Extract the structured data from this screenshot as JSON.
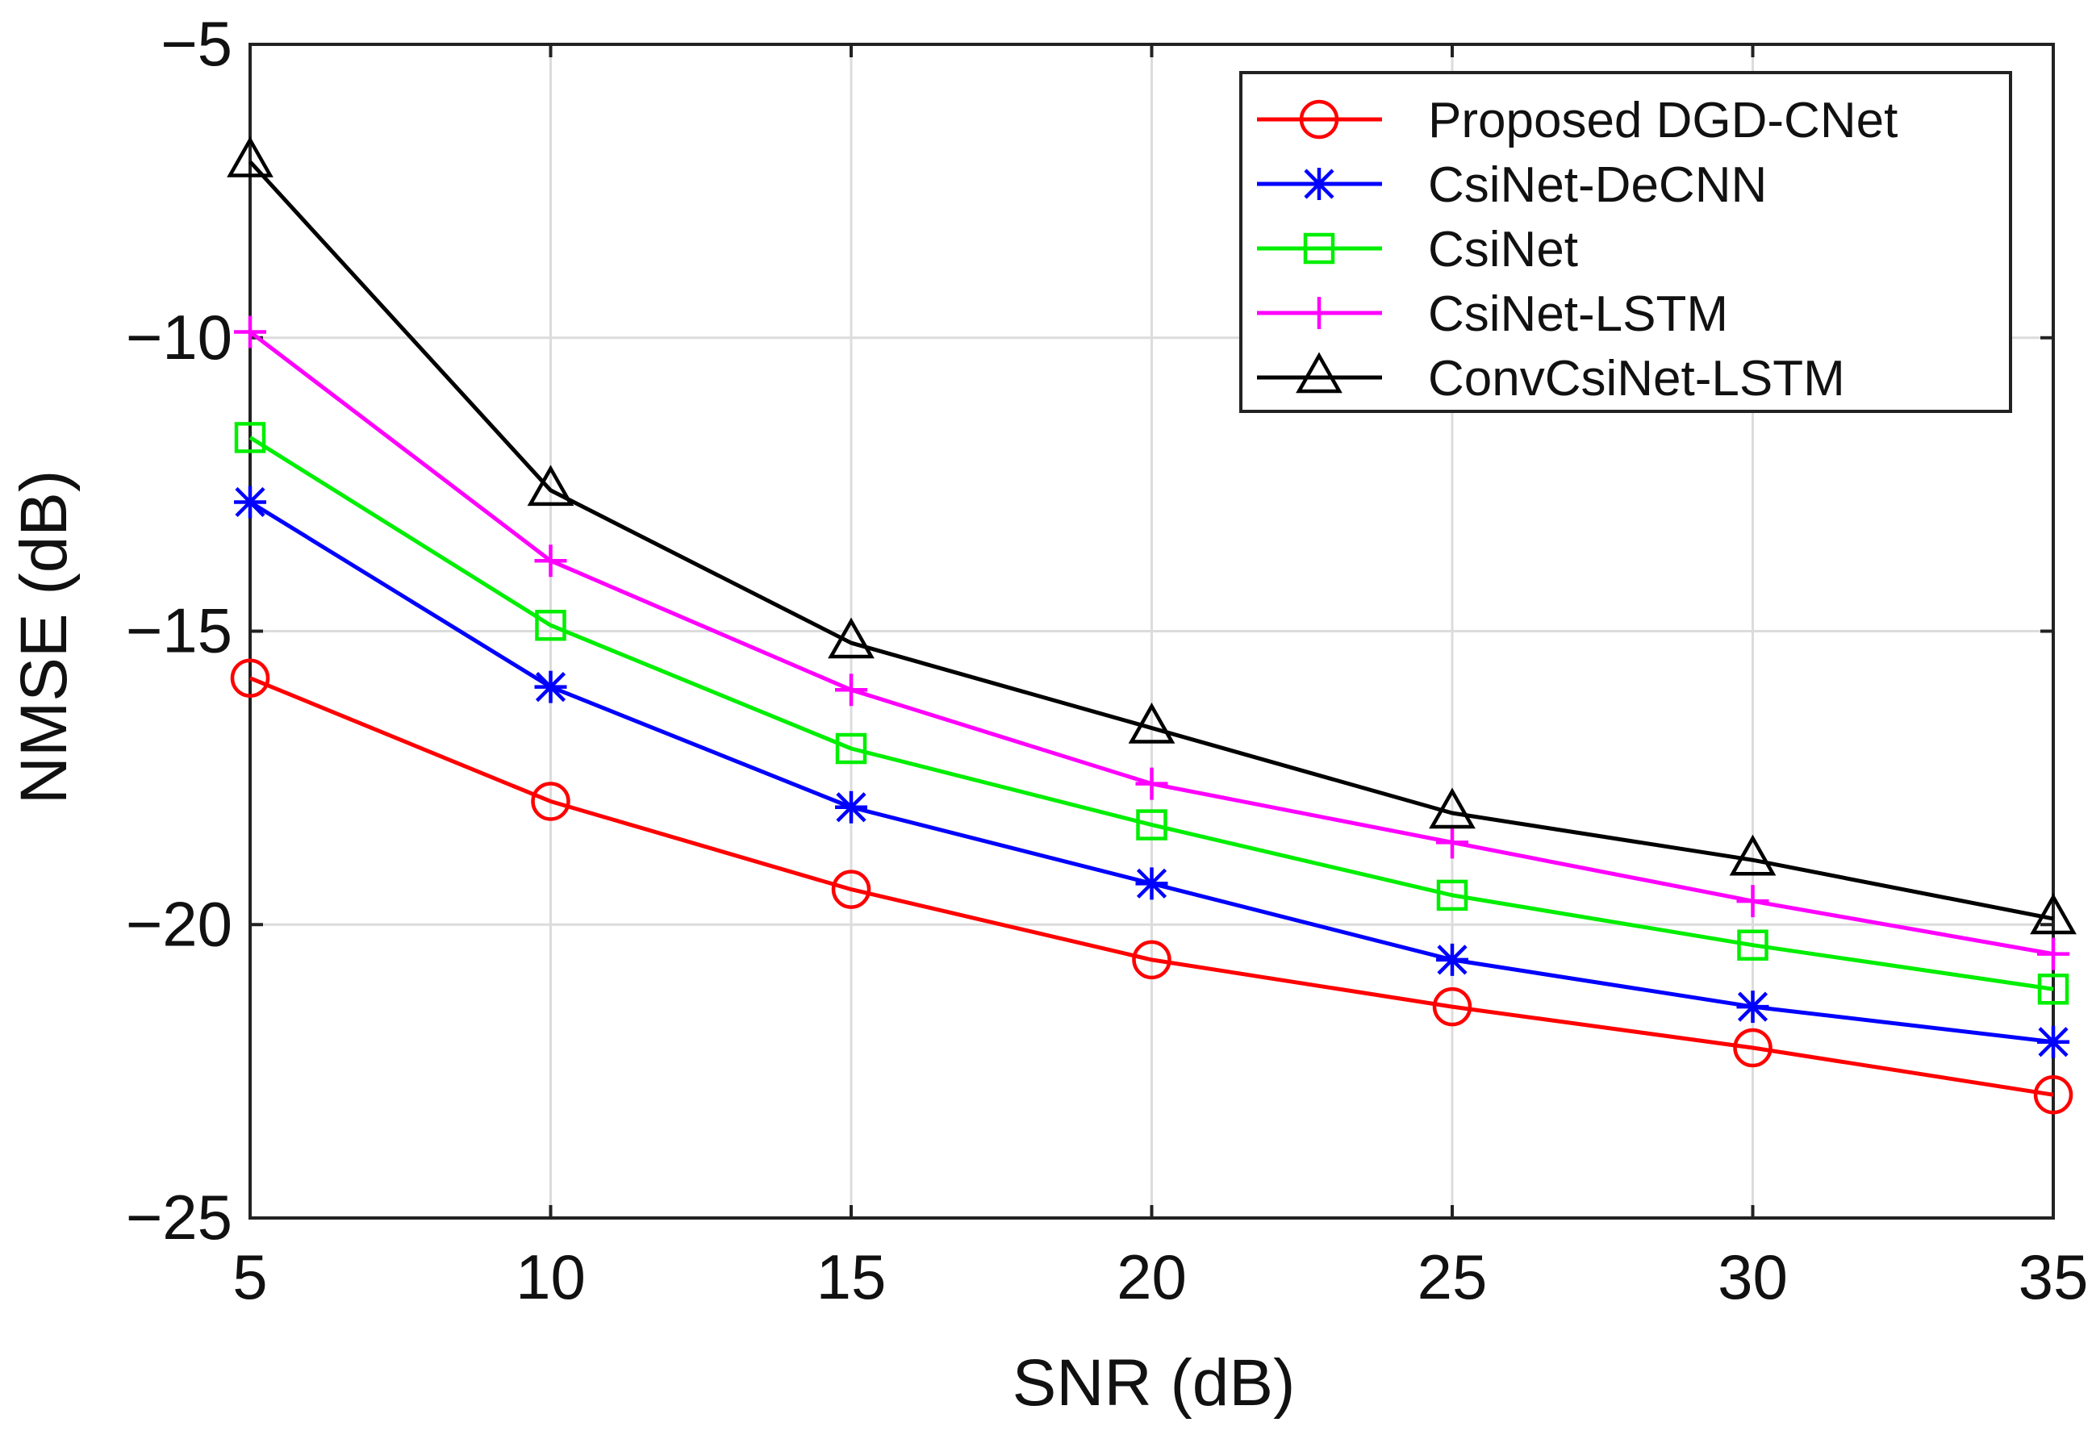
{
  "chart_data": {
    "type": "line",
    "title": "",
    "xlabel": "SNR (dB)",
    "ylabel": "NMSE (dB)",
    "x": [
      5,
      10,
      15,
      20,
      25,
      30,
      35
    ],
    "xlim": [
      5,
      35
    ],
    "ylim": [
      -25,
      -5
    ],
    "xticks": [
      5,
      10,
      15,
      20,
      25,
      30,
      35
    ],
    "yticks": [
      -5,
      -10,
      -15,
      -20,
      -25
    ],
    "xtick_labels": [
      "5",
      "10",
      "15",
      "20",
      "25",
      "30",
      "35"
    ],
    "ytick_labels": [
      "−5",
      "−10",
      "−15",
      "−20",
      "−25"
    ],
    "grid": true,
    "legend_position": "top-right",
    "series": [
      {
        "name": "Proposed DGD-CNet",
        "color": "#ff0000",
        "marker": "circle",
        "values": [
          -15.8,
          -17.9,
          -19.4,
          -20.6,
          -21.4,
          -22.1,
          -22.9
        ]
      },
      {
        "name": "CsiNet-DeCNN",
        "color": "#0000ff",
        "marker": "asterisk",
        "values": [
          -12.8,
          -15.95,
          -18.0,
          -19.3,
          -20.6,
          -21.4,
          -22.0
        ]
      },
      {
        "name": "CsiNet",
        "color": "#00ee00",
        "marker": "square",
        "values": [
          -11.7,
          -14.9,
          -17.0,
          -18.3,
          -19.5,
          -20.35,
          -21.1
        ]
      },
      {
        "name": "CsiNet-LSTM",
        "color": "#ff00ff",
        "marker": "plus",
        "values": [
          -9.9,
          -13.8,
          -16.0,
          -17.6,
          -18.6,
          -19.6,
          -20.5
        ]
      },
      {
        "name": "ConvCsiNet-LSTM",
        "color": "#000000",
        "marker": "triangle",
        "values": [
          -7.0,
          -12.6,
          -15.2,
          -16.65,
          -18.1,
          -18.9,
          -19.9
        ]
      }
    ]
  }
}
